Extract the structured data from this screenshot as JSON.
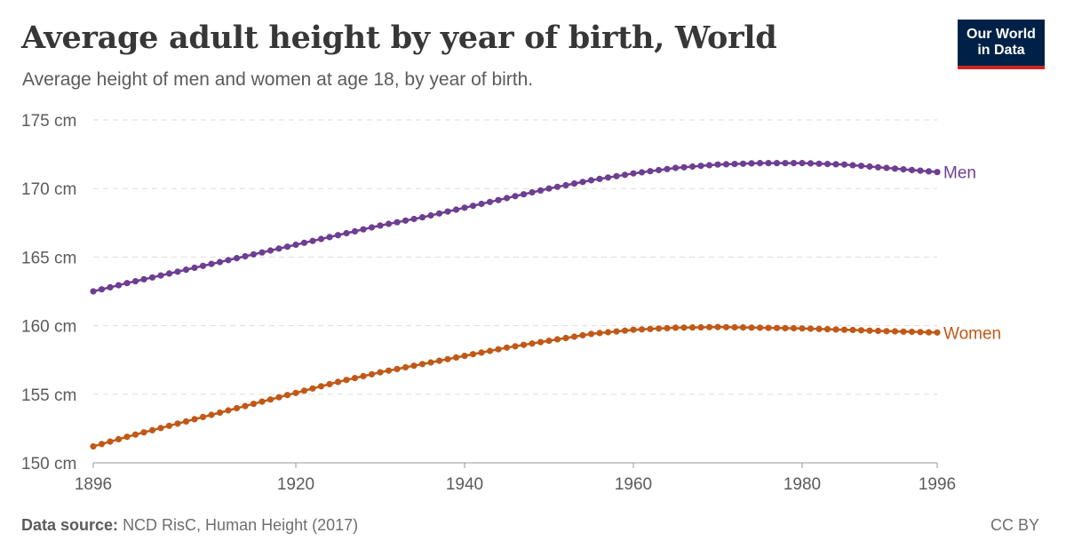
{
  "header": {
    "title": "Average adult height by year of birth, World",
    "subtitle": "Average height of men and women at age 18, by year of birth."
  },
  "logo": {
    "line1": "Our World",
    "line2": "in Data"
  },
  "footer": {
    "source_label": "Data source:",
    "source_text": "NCD RisC, Human Height (2017)",
    "license": "CC BY"
  },
  "colors": {
    "men": "#6d3e91",
    "women": "#c05917",
    "grid": "#dddddd",
    "axis": "#5b5b5b"
  },
  "chart_data": {
    "type": "line",
    "title": "Average adult height by year of birth, World",
    "subtitle": "Average height of men and women at age 18, by year of birth.",
    "xlabel": "",
    "ylabel": "",
    "xlim": [
      1896,
      1996
    ],
    "ylim": [
      150,
      175
    ],
    "y_unit": " cm",
    "y_ticks": [
      150,
      155,
      160,
      165,
      170,
      175
    ],
    "x_ticks": [
      1896,
      1920,
      1940,
      1960,
      1980,
      1996
    ],
    "grid": true,
    "legend": "inline-right",
    "series": [
      {
        "name": "Men",
        "x": [
          1896,
          1900,
          1905,
          1910,
          1915,
          1920,
          1925,
          1930,
          1935,
          1940,
          1945,
          1950,
          1955,
          1960,
          1965,
          1970,
          1975,
          1980,
          1985,
          1990,
          1996
        ],
        "values": [
          162.5,
          163.1,
          163.8,
          164.5,
          165.2,
          165.9,
          166.6,
          167.3,
          167.9,
          168.6,
          169.3,
          170.0,
          170.6,
          171.1,
          171.5,
          171.75,
          171.85,
          171.85,
          171.75,
          171.5,
          171.2
        ]
      },
      {
        "name": "Women",
        "x": [
          1896,
          1900,
          1905,
          1910,
          1915,
          1920,
          1925,
          1930,
          1935,
          1940,
          1945,
          1950,
          1955,
          1960,
          1965,
          1970,
          1975,
          1980,
          1985,
          1990,
          1996
        ],
        "values": [
          151.2,
          151.9,
          152.7,
          153.5,
          154.3,
          155.1,
          155.9,
          156.6,
          157.2,
          157.8,
          158.4,
          158.9,
          159.4,
          159.7,
          159.85,
          159.9,
          159.85,
          159.8,
          159.7,
          159.6,
          159.5
        ]
      }
    ]
  }
}
